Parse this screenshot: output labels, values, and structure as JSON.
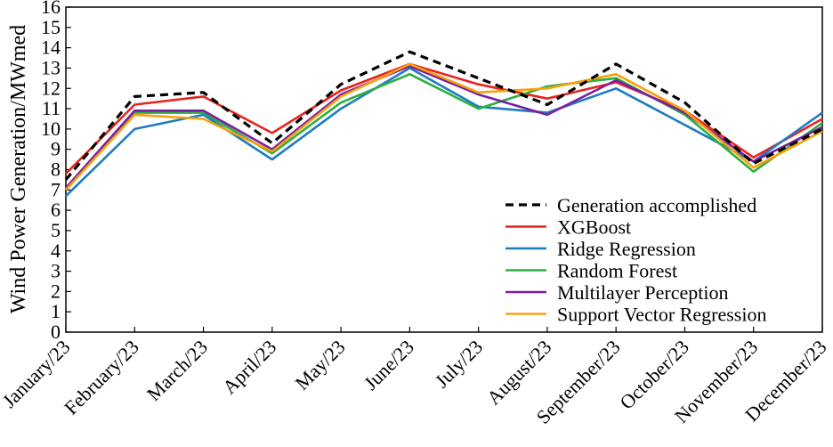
{
  "chart_data": {
    "type": "line",
    "title": "",
    "xlabel": "",
    "ylabel": "Wind Power Generation/MWmed",
    "ylim": [
      0,
      16
    ],
    "yticks": [
      0,
      1,
      2,
      3,
      4,
      5,
      6,
      7,
      8,
      9,
      10,
      11,
      12,
      13,
      14,
      15,
      16
    ],
    "grid": false,
    "legend_position": "bottom-right",
    "categories": [
      "January/23",
      "February/23",
      "March/23",
      "April/23",
      "May/23",
      "June/23",
      "July/23",
      "August/23",
      "September/23",
      "October/23",
      "November/23",
      "December/23"
    ],
    "series": [
      {
        "name": "Generation accomplished",
        "color": "#000000",
        "dash": "dashed",
        "values": [
          7.5,
          11.6,
          11.8,
          9.3,
          12.2,
          13.8,
          12.5,
          11.2,
          13.2,
          11.3,
          8.3,
          10.0
        ]
      },
      {
        "name": "XGBoost",
        "color": "#e8231f",
        "dash": "solid",
        "values": [
          7.8,
          11.2,
          11.6,
          9.8,
          11.9,
          13.2,
          12.2,
          11.5,
          12.3,
          10.9,
          8.6,
          10.5
        ]
      },
      {
        "name": "Ridge Regression",
        "color": "#1f7bc1",
        "dash": "solid",
        "values": [
          6.7,
          10.0,
          10.7,
          8.5,
          11.0,
          13.0,
          11.1,
          10.8,
          12.0,
          10.2,
          8.4,
          10.8
        ]
      },
      {
        "name": "Random Forest",
        "color": "#2bb040",
        "dash": "solid",
        "values": [
          7.0,
          10.8,
          10.8,
          8.8,
          11.3,
          12.7,
          11.0,
          12.1,
          12.5,
          10.7,
          7.9,
          10.3
        ]
      },
      {
        "name": "Multilayer Perception",
        "color": "#7b1fa2",
        "dash": "solid",
        "values": [
          7.1,
          10.9,
          10.9,
          9.0,
          11.7,
          13.1,
          11.7,
          10.7,
          12.4,
          10.8,
          8.4,
          10.1
        ]
      },
      {
        "name": "Support Vector Regression",
        "color": "#f5a20b",
        "dash": "solid",
        "values": [
          7.0,
          10.7,
          10.5,
          8.9,
          11.6,
          13.2,
          11.8,
          12.0,
          12.7,
          10.9,
          8.1,
          9.9
        ]
      }
    ]
  }
}
